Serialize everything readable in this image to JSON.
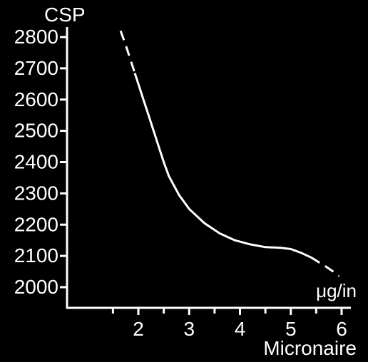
{
  "chart_data": {
    "type": "line",
    "title": "",
    "ylabel": "CSP",
    "xlabel": "Micronaire",
    "x_unit": "μg/in",
    "xlim": [
      1,
      6
    ],
    "ylim": [
      2000,
      2800
    ],
    "x_ticks": [
      2,
      3,
      4,
      5,
      6
    ],
    "x_minor_ticks": [
      1.5,
      2.5,
      3.5,
      4.5,
      5.5
    ],
    "y_ticks": [
      2000,
      2100,
      2200,
      2300,
      2400,
      2500,
      2600,
      2700,
      2800
    ],
    "grid": false,
    "legend": "none",
    "colors": {
      "background": "#000000",
      "foreground": "#ffffff"
    },
    "series": [
      {
        "style": "dashed",
        "x": [
          1.65,
          1.75,
          1.85,
          1.93
        ],
        "y": [
          2820,
          2775,
          2725,
          2685
        ]
      },
      {
        "style": "solid",
        "x": [
          1.93,
          2.0,
          2.1,
          2.2,
          2.3,
          2.4,
          2.5,
          2.6,
          2.8,
          3.0,
          3.3,
          3.6,
          3.9,
          4.2,
          4.5,
          4.8,
          5.0,
          5.2,
          5.4
        ],
        "y": [
          2685,
          2650,
          2600,
          2550,
          2500,
          2450,
          2400,
          2355,
          2295,
          2250,
          2205,
          2172,
          2150,
          2137,
          2128,
          2126,
          2122,
          2110,
          2095
        ]
      },
      {
        "style": "dashed",
        "x": [
          5.4,
          5.55,
          5.7,
          5.85,
          5.95
        ],
        "y": [
          2095,
          2080,
          2065,
          2048,
          2035
        ]
      }
    ]
  }
}
